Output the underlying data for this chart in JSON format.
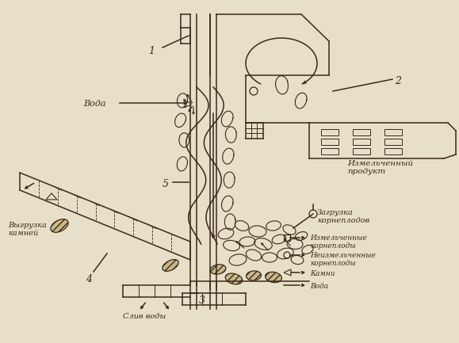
{
  "bg_color": "#e8dfc8",
  "line_color": "#3a2a18",
  "labels": {
    "voda": "Вода",
    "label1": "1",
    "label2": "2",
    "label3": "3",
    "label4": "4",
    "label5": "5",
    "izmelchennyy_produkt": "Измельченный\nпродукт",
    "zagruzka": "Загрузка\nкорнеплодов",
    "vygruzka": "Выгрузка\nкамней",
    "sliv": "Слив воды",
    "legend1": "Измельченные\nкорнеплоды",
    "legend2": "Неизмельченные\nкорнеплоды",
    "legend3": "Камни",
    "legend4": "Вода"
  },
  "lw": 1.1
}
